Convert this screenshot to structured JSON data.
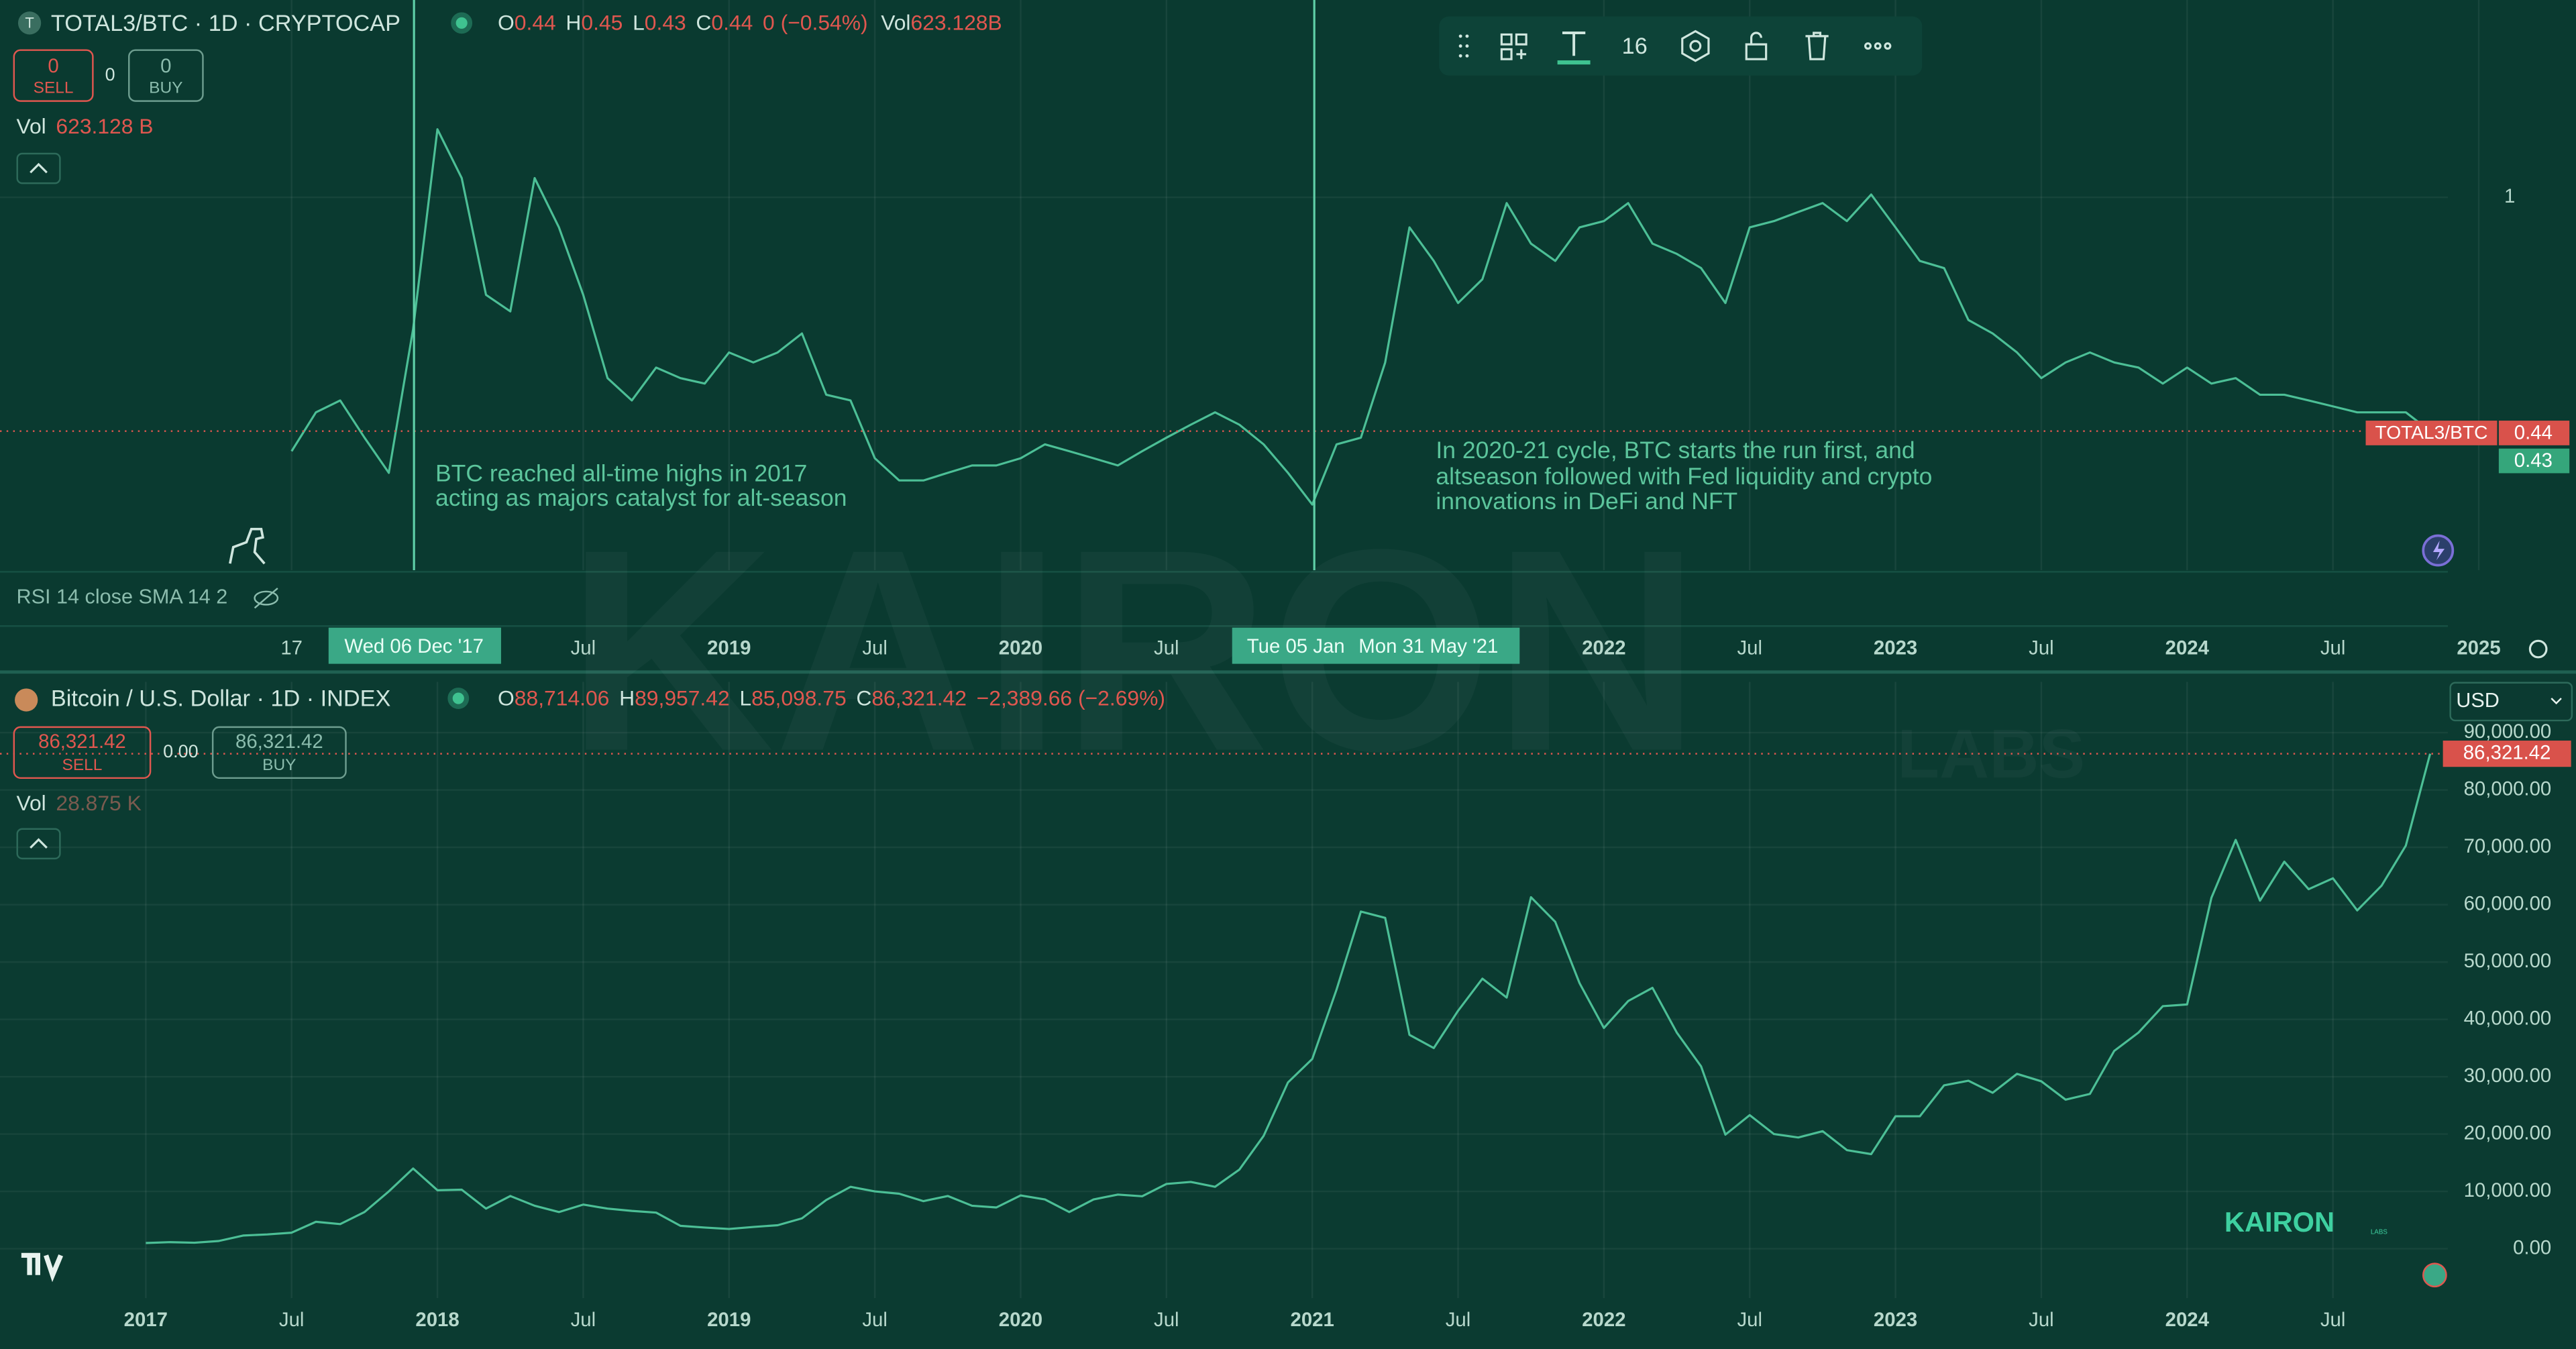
{
  "toolbar": {
    "font_size": "16"
  },
  "branding": {
    "watermark": "KAIRON",
    "watermark_sub": "LABS",
    "logo": "KAIRON",
    "logo_sub": "LABS"
  },
  "chart_data": [
    {
      "type": "line",
      "title": "TOTAL3/BTC · 1D · CRYPTOCAP",
      "symbol_icon": "T",
      "ohlc": {
        "o_label": "O",
        "o": "0.44",
        "h_label": "H",
        "h": "0.45",
        "l_label": "L",
        "l": "0.43",
        "c_label": "C",
        "c": "0.44",
        "change": "0 (−0.54%)",
        "vol_label": "Vol",
        "vol": "623.128B"
      },
      "trade": {
        "sell_price": "0",
        "sell": "SELL",
        "spread": "0",
        "buy_price": "0",
        "buy": "BUY"
      },
      "volume": {
        "label": "Vol",
        "value": "623.128 B"
      },
      "indicator": "RSI 14 close SMA 14 2",
      "price_labels": {
        "name": "TOTAL3/BTC",
        "last": "0.44",
        "second": "0.43"
      },
      "crosshair_labels": [
        "Wed 06 Dec '17",
        "Tue 05 Jan",
        "Mon 31 May '21"
      ],
      "annotations": [
        [
          "BTC reached all-time highs in 2017",
          "acting as majors catalyst for alt-season"
        ],
        [
          "In 2020-21 cycle, BTC starts the run first, and",
          "altseason followed with Fed liquidity and crypto",
          "innovations in DeFi and NFT"
        ]
      ],
      "log_scale": true,
      "xlim": [
        "2016-07",
        "2024-12"
      ],
      "ylim": [
        0.27,
        2.0
      ],
      "yticks": [
        1
      ],
      "xticks": [
        {
          "value": "2017-07",
          "label": "17"
        },
        {
          "value": "2018-07",
          "label": "Jul"
        },
        {
          "value": "2019-01",
          "label": "2019"
        },
        {
          "value": "2019-07",
          "label": "Jul"
        },
        {
          "value": "2020-01",
          "label": "2020"
        },
        {
          "value": "2020-07",
          "label": "Jul"
        },
        {
          "value": "2022-01",
          "label": "2022"
        },
        {
          "value": "2022-07",
          "label": "Jul"
        },
        {
          "value": "2023-01",
          "label": "2023"
        },
        {
          "value": "2023-07",
          "label": "Jul"
        },
        {
          "value": "2024-01",
          "label": "2024"
        },
        {
          "value": "2024-07",
          "label": "Jul"
        },
        {
          "value": "2025-01",
          "label": "2025"
        }
      ],
      "x": [
        "2017-07",
        "2017-08",
        "2017-09",
        "2017-10",
        "2017-11",
        "2017-12",
        "2018-01",
        "2018-02",
        "2018-03",
        "2018-04",
        "2018-05",
        "2018-06",
        "2018-07",
        "2018-08",
        "2018-09",
        "2018-10",
        "2018-11",
        "2018-12",
        "2019-01",
        "2019-02",
        "2019-03",
        "2019-04",
        "2019-05",
        "2019-06",
        "2019-07",
        "2019-08",
        "2019-09",
        "2019-10",
        "2019-11",
        "2019-12",
        "2020-01",
        "2020-02",
        "2020-03",
        "2020-04",
        "2020-05",
        "2020-06",
        "2020-07",
        "2020-08",
        "2020-09",
        "2020-10",
        "2020-11",
        "2020-12",
        "2021-01",
        "2021-02",
        "2021-03",
        "2021-04",
        "2021-05",
        "2021-06",
        "2021-07",
        "2021-08",
        "2021-09",
        "2021-10",
        "2021-11",
        "2021-12",
        "2022-01",
        "2022-02",
        "2022-03",
        "2022-04",
        "2022-05",
        "2022-06",
        "2022-07",
        "2022-08",
        "2022-09",
        "2022-10",
        "2022-11",
        "2022-12",
        "2023-01",
        "2023-02",
        "2023-03",
        "2023-04",
        "2023-05",
        "2023-06",
        "2023-07",
        "2023-08",
        "2023-09",
        "2023-10",
        "2023-11",
        "2023-12",
        "2024-01",
        "2024-02",
        "2024-03",
        "2024-04",
        "2024-05",
        "2024-06",
        "2024-07",
        "2024-08",
        "2024-09",
        "2024-10",
        "2024-11"
      ],
      "series": [
        {
          "name": "TOTAL3/BTC",
          "color": "#4cbf96",
          "values": [
            0.41,
            0.47,
            0.49,
            0.43,
            0.38,
            0.63,
            1.27,
            1.07,
            0.71,
            0.67,
            1.07,
            0.9,
            0.71,
            0.53,
            0.49,
            0.55,
            0.53,
            0.52,
            0.58,
            0.56,
            0.58,
            0.62,
            0.5,
            0.49,
            0.4,
            0.37,
            0.37,
            0.38,
            0.39,
            0.39,
            0.4,
            0.42,
            0.41,
            0.4,
            0.39,
            0.41,
            0.43,
            0.45,
            0.47,
            0.45,
            0.42,
            0.38,
            0.34,
            0.42,
            0.43,
            0.56,
            0.9,
            0.8,
            0.69,
            0.75,
            0.98,
            0.85,
            0.8,
            0.9,
            0.92,
            0.98,
            0.85,
            0.82,
            0.78,
            0.69,
            0.9,
            0.92,
            0.95,
            0.98,
            0.92,
            1.01,
            0.9,
            0.8,
            0.78,
            0.65,
            0.62,
            0.58,
            0.53,
            0.56,
            0.58,
            0.56,
            0.55,
            0.52,
            0.55,
            0.52,
            0.53,
            0.5,
            0.5,
            0.49,
            0.48,
            0.47,
            0.47,
            0.47,
            0.44
          ]
        }
      ]
    },
    {
      "type": "line",
      "title": "Bitcoin / U.S. Dollar · 1D · INDEX",
      "ohlc": {
        "o_label": "O",
        "o": "88,714.06",
        "h_label": "H",
        "h": "89,957.42",
        "l_label": "L",
        "l": "85,098.75",
        "c_label": "C",
        "c": "86,321.42",
        "change": "−2,389.66 (−2.69%)"
      },
      "trade": {
        "sell_price": "86,321.42",
        "sell": "SELL",
        "spread": "0.00",
        "buy_price": "86,321.42",
        "buy": "BUY"
      },
      "volume": {
        "label": "Vol",
        "value": "28.875 K"
      },
      "currency": "USD",
      "price_labels": {
        "last": "86,321.42"
      },
      "xlim": [
        "2016-07",
        "2024-12"
      ],
      "ylim": [
        -8600,
        98850
      ],
      "yticks": [
        {
          "value": 0,
          "label": "0.00"
        },
        {
          "value": 10000,
          "label": "10,000.00"
        },
        {
          "value": 20000,
          "label": "20,000.00"
        },
        {
          "value": 30000,
          "label": "30,000.00"
        },
        {
          "value": 40000,
          "label": "40,000.00"
        },
        {
          "value": 50000,
          "label": "50,000.00"
        },
        {
          "value": 60000,
          "label": "60,000.00"
        },
        {
          "value": 70000,
          "label": "70,000.00"
        },
        {
          "value": 80000,
          "label": "80,000.00"
        },
        {
          "value": 90000,
          "label": "90,000.00"
        }
      ],
      "xticks": [
        {
          "value": "2017-01",
          "label": "2017"
        },
        {
          "value": "2017-07",
          "label": "Jul"
        },
        {
          "value": "2018-01",
          "label": "2018"
        },
        {
          "value": "2018-07",
          "label": "Jul"
        },
        {
          "value": "2019-01",
          "label": "2019"
        },
        {
          "value": "2019-07",
          "label": "Jul"
        },
        {
          "value": "2020-01",
          "label": "2020"
        },
        {
          "value": "2020-07",
          "label": "Jul"
        },
        {
          "value": "2021-01",
          "label": "2021"
        },
        {
          "value": "2021-07",
          "label": "Jul"
        },
        {
          "value": "2022-01",
          "label": "2022"
        },
        {
          "value": "2022-07",
          "label": "Jul"
        },
        {
          "value": "2023-01",
          "label": "2023"
        },
        {
          "value": "2023-07",
          "label": "Jul"
        },
        {
          "value": "2024-01",
          "label": "2024"
        },
        {
          "value": "2024-07",
          "label": "Jul"
        }
      ],
      "x": [
        "2017-01",
        "2017-02",
        "2017-03",
        "2017-04",
        "2017-05",
        "2017-06",
        "2017-07",
        "2017-08",
        "2017-09",
        "2017-10",
        "2017-11",
        "2017-12",
        "2018-01",
        "2018-02",
        "2018-03",
        "2018-04",
        "2018-05",
        "2018-06",
        "2018-07",
        "2018-08",
        "2018-09",
        "2018-10",
        "2018-11",
        "2018-12",
        "2019-01",
        "2019-02",
        "2019-03",
        "2019-04",
        "2019-05",
        "2019-06",
        "2019-07",
        "2019-08",
        "2019-09",
        "2019-10",
        "2019-11",
        "2019-12",
        "2020-01",
        "2020-02",
        "2020-03",
        "2020-04",
        "2020-05",
        "2020-06",
        "2020-07",
        "2020-08",
        "2020-09",
        "2020-10",
        "2020-11",
        "2020-12",
        "2021-01",
        "2021-02",
        "2021-03",
        "2021-04",
        "2021-05",
        "2021-06",
        "2021-07",
        "2021-08",
        "2021-09",
        "2021-10",
        "2021-11",
        "2021-12",
        "2022-01",
        "2022-02",
        "2022-03",
        "2022-04",
        "2022-05",
        "2022-06",
        "2022-07",
        "2022-08",
        "2022-09",
        "2022-10",
        "2022-11",
        "2022-12",
        "2023-01",
        "2023-02",
        "2023-03",
        "2023-04",
        "2023-05",
        "2023-06",
        "2023-07",
        "2023-08",
        "2023-09",
        "2023-10",
        "2023-11",
        "2023-12",
        "2024-01",
        "2024-02",
        "2024-03",
        "2024-04",
        "2024-05",
        "2024-06",
        "2024-07",
        "2024-08",
        "2024-09",
        "2024-10",
        "2024-11"
      ],
      "series": [
        {
          "name": "Bitcoin / U.S. Dollar",
          "color": "#4cbf96",
          "values": [
            1000,
            1150,
            1050,
            1350,
            2300,
            2500,
            2800,
            4700,
            4300,
            6400,
            10000,
            14000,
            10200,
            10300,
            7000,
            9200,
            7500,
            6400,
            7700,
            7000,
            6600,
            6300,
            4000,
            3700,
            3450,
            3800,
            4100,
            5300,
            8500,
            10800,
            10000,
            9600,
            8300,
            9200,
            7500,
            7200,
            9300,
            8600,
            6400,
            8600,
            9450,
            9150,
            11300,
            11650,
            10800,
            13800,
            19700,
            29000,
            33100,
            45200,
            58800,
            57700,
            37300,
            35000,
            41500,
            47100,
            43800,
            61300,
            57000,
            46300,
            38500,
            43200,
            45500,
            37700,
            31800,
            19900,
            23300,
            20000,
            19400,
            20500,
            17200,
            16500,
            23100,
            23100,
            28500,
            29300,
            27200,
            30500,
            29200,
            26000,
            27000,
            34500,
            37700,
            42300,
            42600,
            61200,
            71300,
            60700,
            67500,
            62700,
            64600,
            59000,
            63300,
            70300,
            86321.42
          ]
        }
      ]
    }
  ]
}
